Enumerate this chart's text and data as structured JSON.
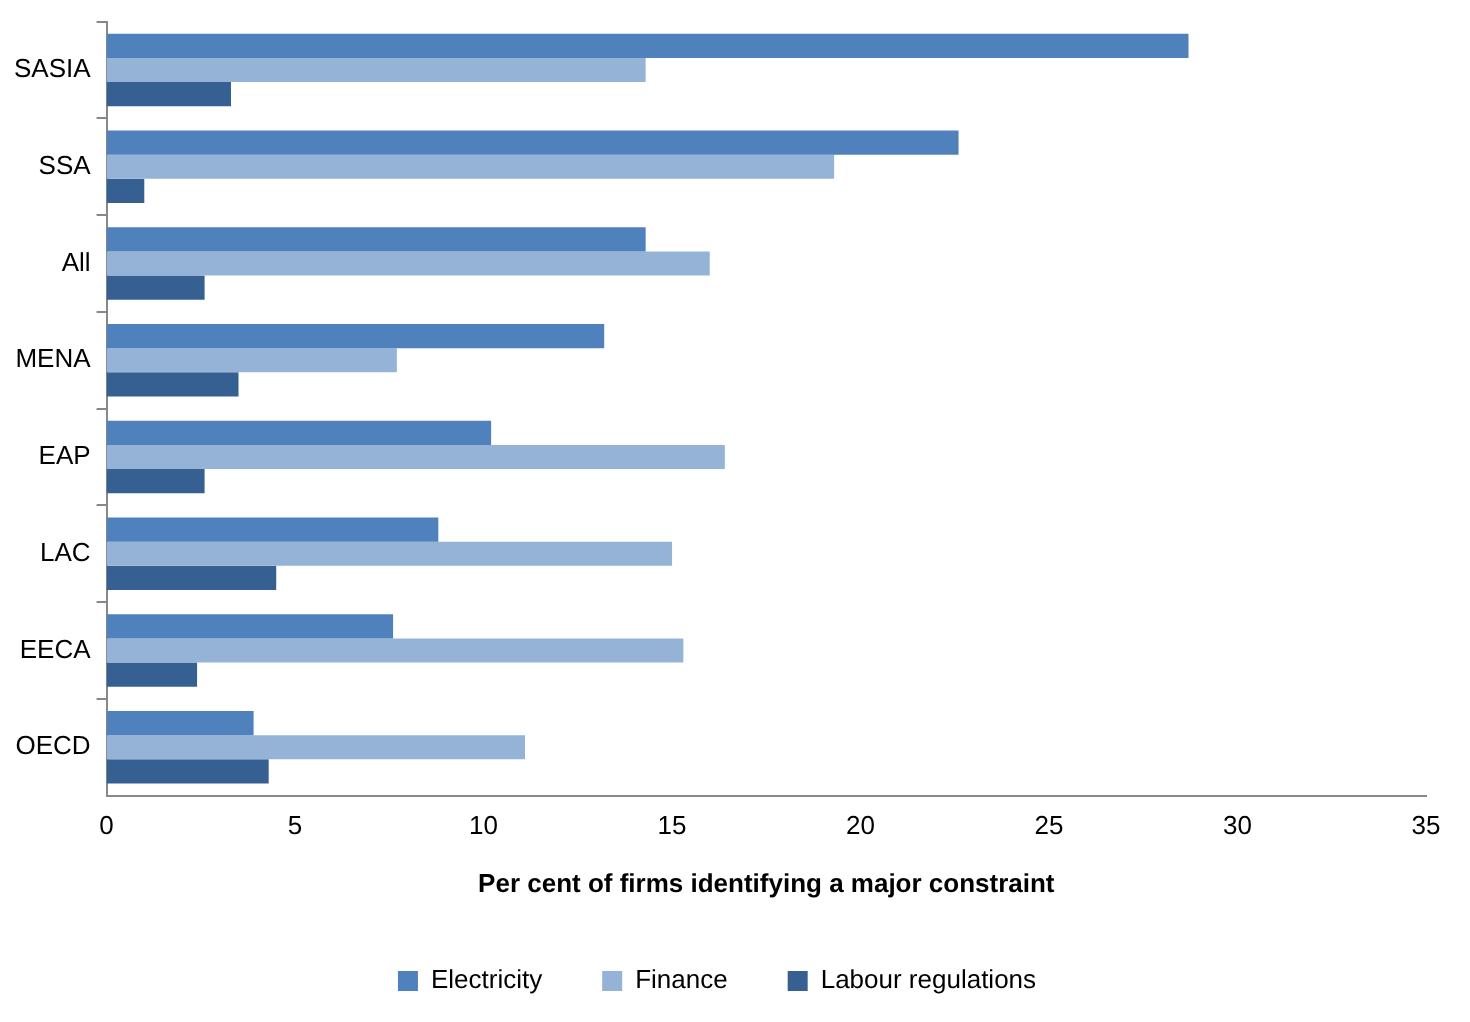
{
  "chart_data": {
    "type": "bar",
    "orientation": "horizontal",
    "xlabel": "Per cent of firms identifying a major constraint",
    "categories": [
      "SASIA",
      "SSA",
      "All",
      "MENA",
      "EAP",
      "LAC",
      "EECA",
      "OECD"
    ],
    "series": [
      {
        "name": "Electricity",
        "color": "#4f81bd",
        "values": [
          28.7,
          22.6,
          14.3,
          13.2,
          10.2,
          8.8,
          7.6,
          3.9
        ]
      },
      {
        "name": "Finance",
        "color": "#95b3d7",
        "values": [
          14.3,
          19.3,
          16.0,
          7.7,
          16.4,
          15.0,
          15.3,
          11.1
        ]
      },
      {
        "name": "Labour regulations",
        "color": "#366092",
        "values": [
          3.3,
          1.0,
          2.6,
          3.5,
          2.6,
          4.5,
          2.4,
          4.3
        ]
      }
    ],
    "xlim": [
      0,
      35
    ],
    "xticks": [
      0,
      5,
      10,
      15,
      20,
      25,
      30,
      35
    ],
    "grid": false,
    "legend": "bottom"
  }
}
